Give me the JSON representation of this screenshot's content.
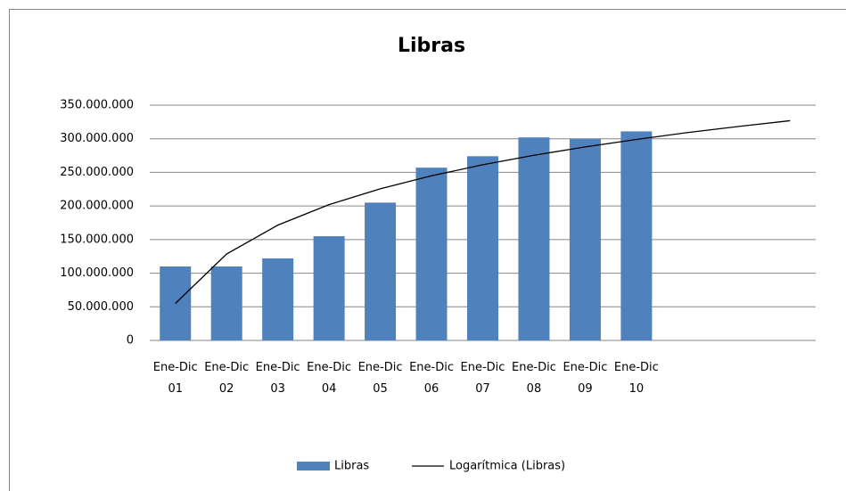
{
  "chart_data": {
    "type": "bar",
    "title": "Libras",
    "categories": [
      "Ene-Dic 01",
      "Ene-Dic 02",
      "Ene-Dic 03",
      "Ene-Dic 04",
      "Ene-Dic 05",
      "Ene-Dic 06",
      "Ene-Dic 07",
      "Ene-Dic 08",
      "Ene-Dic 09",
      "Ene-Dic 10",
      null,
      null,
      null
    ],
    "series": [
      {
        "name": "Libras",
        "type": "bar",
        "color": "#4f81bd",
        "values": [
          110000000,
          110000000,
          122000000,
          155000000,
          205000000,
          257000000,
          274000000,
          302000000,
          300000000,
          311000000,
          null,
          null,
          null
        ]
      },
      {
        "name": "Logarítmica (Libras)",
        "type": "line",
        "color": "#000000",
        "values": [
          55000000,
          128500000,
          171500000,
          202000000,
          225600000,
          244900000,
          261300000,
          275400000,
          287900000,
          299000000,
          309200000,
          318400000,
          326900000
        ]
      }
    ],
    "ylim": [
      0,
      350000000
    ],
    "yticks": [
      0,
      {
        "value": 50000000,
        "label": "50.000.000"
      },
      {
        "value": 100000000,
        "label": "100.000.000"
      },
      {
        "value": 150000000,
        "label": "150.000.000"
      },
      {
        "value": 200000000,
        "label": "200.000.000"
      },
      {
        "value": 250000000,
        "label": "250.000.000"
      },
      {
        "value": 300000000,
        "label": "300.000.000"
      },
      {
        "value": 350000000,
        "label": "350.000.000"
      }
    ],
    "grid": true,
    "legend": "bottom"
  }
}
